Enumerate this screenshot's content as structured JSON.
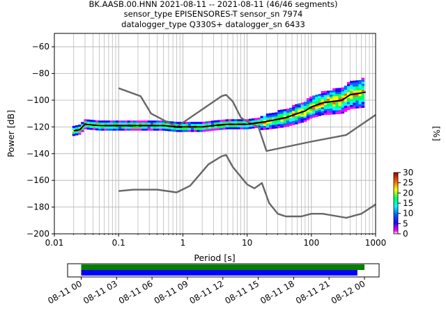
{
  "chart_data": {
    "type": "line",
    "title": [
      "BK.AASB.00.HNN   2021-08-11 -- 2021-08-11  (46/46 segments)",
      "sensor_type EPISENSORES-T sensor_sn 7974",
      "datalogger_type Q330S+ datalogger_sn 6433"
    ],
    "xlabel": "Period [s]",
    "ylabel": "Power [dB]",
    "xscale": "log",
    "xlim": [
      0.01,
      1000
    ],
    "ylim": [
      -200,
      -50
    ],
    "grid": true,
    "xticks": [
      {
        "value": 0.01,
        "label": "0.01"
      },
      {
        "value": 0.1,
        "label": "0.1"
      },
      {
        "value": 1,
        "label": "1"
      },
      {
        "value": 10,
        "label": "10"
      },
      {
        "value": 100,
        "label": "100"
      },
      {
        "value": 1000,
        "label": "1000"
      }
    ],
    "yticks": [
      {
        "value": -60,
        "label": "−60"
      },
      {
        "value": -80,
        "label": "−80"
      },
      {
        "value": -100,
        "label": "−100"
      },
      {
        "value": -120,
        "label": "−120"
      },
      {
        "value": -140,
        "label": "−140"
      },
      {
        "value": -160,
        "label": "−160"
      },
      {
        "value": -180,
        "label": "−180"
      },
      {
        "value": -200,
        "label": "−200"
      }
    ],
    "series": [
      {
        "color": "#666666",
        "points": [
          [
            0.1,
            -91
          ],
          [
            0.22,
            -97
          ],
          [
            0.32,
            -110
          ],
          [
            0.8,
            -120
          ],
          [
            4.0,
            -97
          ],
          [
            4.7,
            -96
          ],
          [
            6.0,
            -101
          ],
          [
            8.0,
            -113
          ],
          [
            10,
            -116
          ],
          [
            15,
            -120
          ],
          [
            20,
            -138
          ],
          [
            100,
            -131
          ],
          [
            350,
            -126
          ],
          [
            1000,
            -111
          ]
        ]
      },
      {
        "color": "#666666",
        "points": [
          [
            0.1,
            -168
          ],
          [
            0.17,
            -167
          ],
          [
            0.4,
            -167
          ],
          [
            0.8,
            -169
          ],
          [
            1.3,
            -164
          ],
          [
            2.5,
            -148
          ],
          [
            4.0,
            -142
          ],
          [
            4.7,
            -141
          ],
          [
            6.0,
            -150
          ],
          [
            10,
            -163
          ],
          [
            13,
            -166
          ],
          [
            17,
            -162
          ],
          [
            22,
            -177
          ],
          [
            30,
            -185
          ],
          [
            40,
            -187
          ],
          [
            70,
            -187
          ],
          [
            100,
            -185
          ],
          [
            150,
            -185
          ],
          [
            350,
            -188
          ],
          [
            600,
            -185
          ],
          [
            1000,
            -178
          ]
        ]
      },
      {
        "color": "#000000",
        "points": [
          [
            0.02,
            -123
          ],
          [
            0.025,
            -122
          ],
          [
            0.03,
            -118
          ],
          [
            0.05,
            -119
          ],
          [
            0.1,
            -119
          ],
          [
            0.2,
            -119
          ],
          [
            0.5,
            -119
          ],
          [
            0.8,
            -120
          ],
          [
            1,
            -120
          ],
          [
            2,
            -120
          ],
          [
            3,
            -119
          ],
          [
            5,
            -118
          ],
          [
            10,
            -118
          ],
          [
            20,
            -116
          ],
          [
            40,
            -113
          ],
          [
            80,
            -108
          ],
          [
            100,
            -105
          ],
          [
            150,
            -102
          ],
          [
            300,
            -100
          ],
          [
            400,
            -96
          ],
          [
            700,
            -94
          ]
        ]
      }
    ],
    "colorbar": {
      "label": "[%]",
      "min": 0,
      "max": 30,
      "ticks": [
        "0",
        "5",
        "10",
        "15",
        "20",
        "25",
        "30"
      ]
    },
    "coverage": {
      "tick_labels": [
        "08-11 00",
        "08-11 03",
        "08-11 06",
        "08-11 09",
        "08-11 12",
        "08-11 15",
        "08-11 18",
        "08-11 21",
        "08-12 00"
      ],
      "start_hour": 0,
      "end_hour": 24,
      "bars": [
        {
          "color": "#008000",
          "start": 0,
          "end": 24
        },
        {
          "color": "#0000ff",
          "start": 0,
          "end": 23.4
        }
      ]
    }
  }
}
